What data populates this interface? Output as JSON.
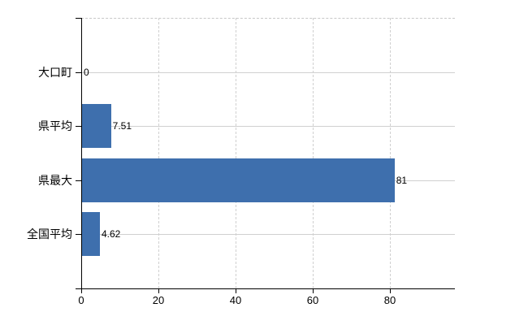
{
  "chart_data": {
    "type": "bar",
    "orientation": "horizontal",
    "title": "",
    "xlabel": "",
    "ylabel": "",
    "categories": [
      "大口町",
      "県平均",
      "県最大",
      "全国平均"
    ],
    "values": [
      0,
      7.51,
      81,
      4.62
    ],
    "value_labels": [
      "0",
      "7.51",
      "81",
      "4.62"
    ],
    "x_ticks": [
      0,
      20,
      40,
      60,
      80
    ],
    "x_tick_labels": [
      "0",
      "20",
      "40",
      "60",
      "80"
    ],
    "xlim": [
      0,
      96.8
    ],
    "grid": true,
    "legend": false,
    "colors": {
      "bar": "#3e6fad",
      "grid": "#d0d0d0",
      "plot_border": "#c8c8c8",
      "axis": "#000000",
      "text": "#000000",
      "background": "#ffffff"
    }
  }
}
